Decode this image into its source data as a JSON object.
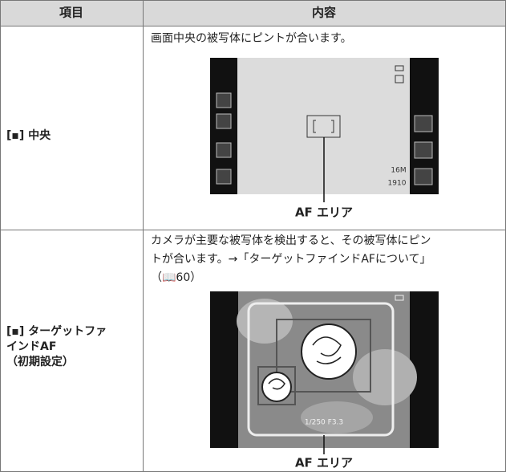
{
  "table": {
    "header": [
      "項目",
      "内容"
    ],
    "rows": [
      {
        "label": [
          "[▪] 中央"
        ],
        "description": [
          "画面中央の被写体にピントが合います。"
        ],
        "figure": {
          "caption": "AF エリア",
          "screen_texts": [
            "16M",
            "1910"
          ]
        }
      },
      {
        "label": [
          "[▪] ターゲットファ",
          "インドAF",
          "（初期設定）"
        ],
        "description": [
          "カメラが主要な被写体を検出すると、その被写体にピン",
          "トが合います。→「ターゲットファインドAFについて」",
          "（📖60）"
        ],
        "figure": {
          "caption": "AF エリア",
          "screen_texts": [
            "1/250 F3.3"
          ]
        }
      }
    ]
  }
}
